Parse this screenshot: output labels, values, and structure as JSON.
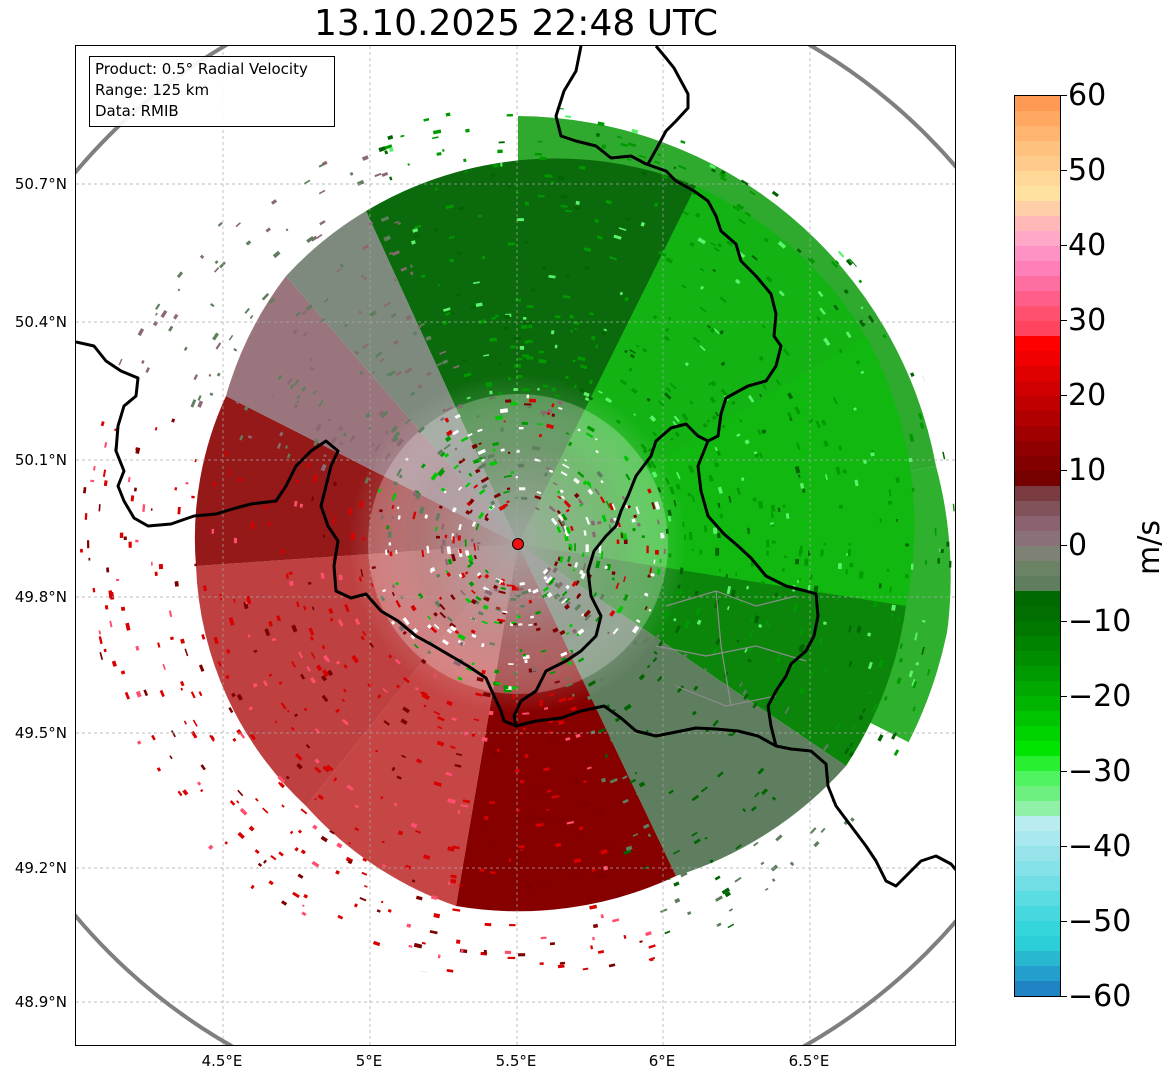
{
  "title": "13.10.2025 22:48 UTC",
  "info_box": {
    "product": "Product: 0.5° Radial Velocity",
    "range": "Range: 125 km",
    "data": "Data: RMIB"
  },
  "map": {
    "lat_labels": [
      "50.7°N",
      "50.4°N",
      "50.1°N",
      "49.8°N",
      "49.5°N",
      "49.2°N",
      "48.9°N"
    ],
    "lon_labels": [
      "4.5°E",
      "5°E",
      "5.5°E",
      "6°E",
      "6.5°E"
    ],
    "radar_site": {
      "lon": 5.5,
      "lat": 49.91
    },
    "range_km": 125
  },
  "colorbar": {
    "unit": "m/s",
    "ticks": [
      "60",
      "50",
      "40",
      "30",
      "20",
      "10",
      "0",
      "−10",
      "−20",
      "−30",
      "−40",
      "−50",
      "−60"
    ],
    "vmin": -60,
    "vmax": 60,
    "colors": {
      "approaching_cyan": "#2fd8dc",
      "light_cyan": "#b4ecf0",
      "light_green": "#5cf36c",
      "bright_green": "#00c800",
      "green": "#009a00",
      "dark_green": "#006400",
      "gray_green": "#5e7e5e",
      "gray_mauve": "#8a6a72",
      "dark_red": "#7d0000",
      "red": "#d80000",
      "bright_red": "#ff0000",
      "pink": "#ff4f6e",
      "light_pink": "#ff92c4",
      "peach": "#ffd9a0",
      "orange": "#ff9a55"
    }
  }
}
